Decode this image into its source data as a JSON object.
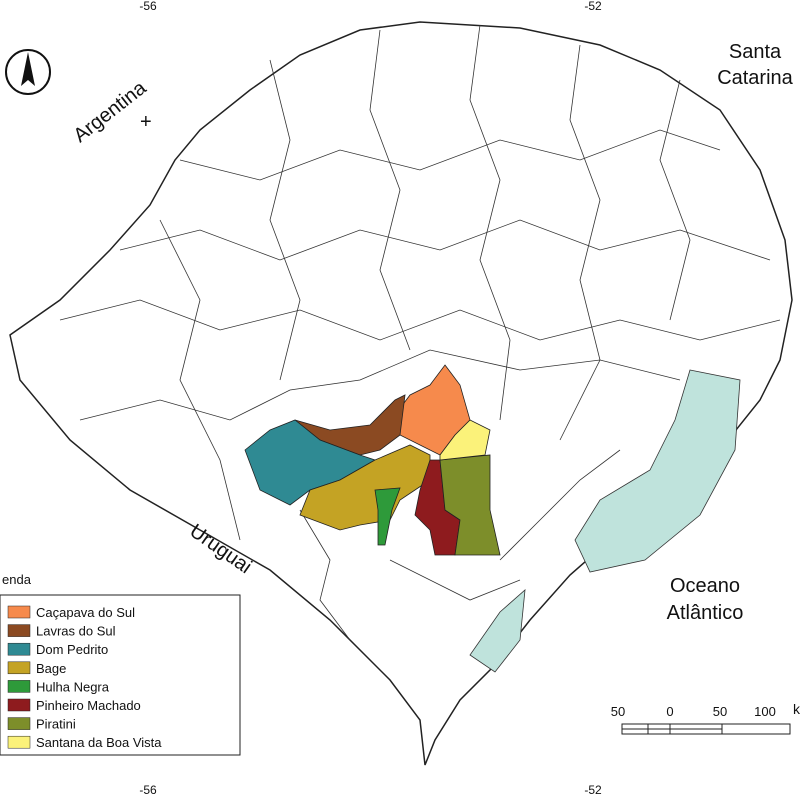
{
  "map": {
    "graticule_top": [
      "-56",
      "-52"
    ],
    "graticule_bottom": [
      "-56",
      "-52"
    ],
    "places": {
      "santa_catarina": [
        "Santa",
        "Catarina"
      ],
      "argentina": "Argentina",
      "uruguai": "Uruguai",
      "oceano": [
        "Oceano",
        "Atlântico"
      ]
    },
    "legend": {
      "title": "enda",
      "items": [
        {
          "label": "Caçapava do Sul",
          "color": "#f68a4c"
        },
        {
          "label": "Lavras do Sul",
          "color": "#8b4a22"
        },
        {
          "label": "Dom Pedrito",
          "color": "#2f8a93"
        },
        {
          "label": "Bage",
          "color": "#c4a324"
        },
        {
          "label": "Hulha Negra",
          "color": "#2e9a3a"
        },
        {
          "label": "Pinheiro Machado",
          "color": "#8e1b1e"
        },
        {
          "label": "Piratini",
          "color": "#7d8e2a"
        },
        {
          "label": "Santana da Boa Vista",
          "color": "#fbf27a"
        }
      ]
    },
    "scale": {
      "labels": [
        "50",
        "0",
        "50",
        "100"
      ],
      "unit": "k"
    }
  }
}
